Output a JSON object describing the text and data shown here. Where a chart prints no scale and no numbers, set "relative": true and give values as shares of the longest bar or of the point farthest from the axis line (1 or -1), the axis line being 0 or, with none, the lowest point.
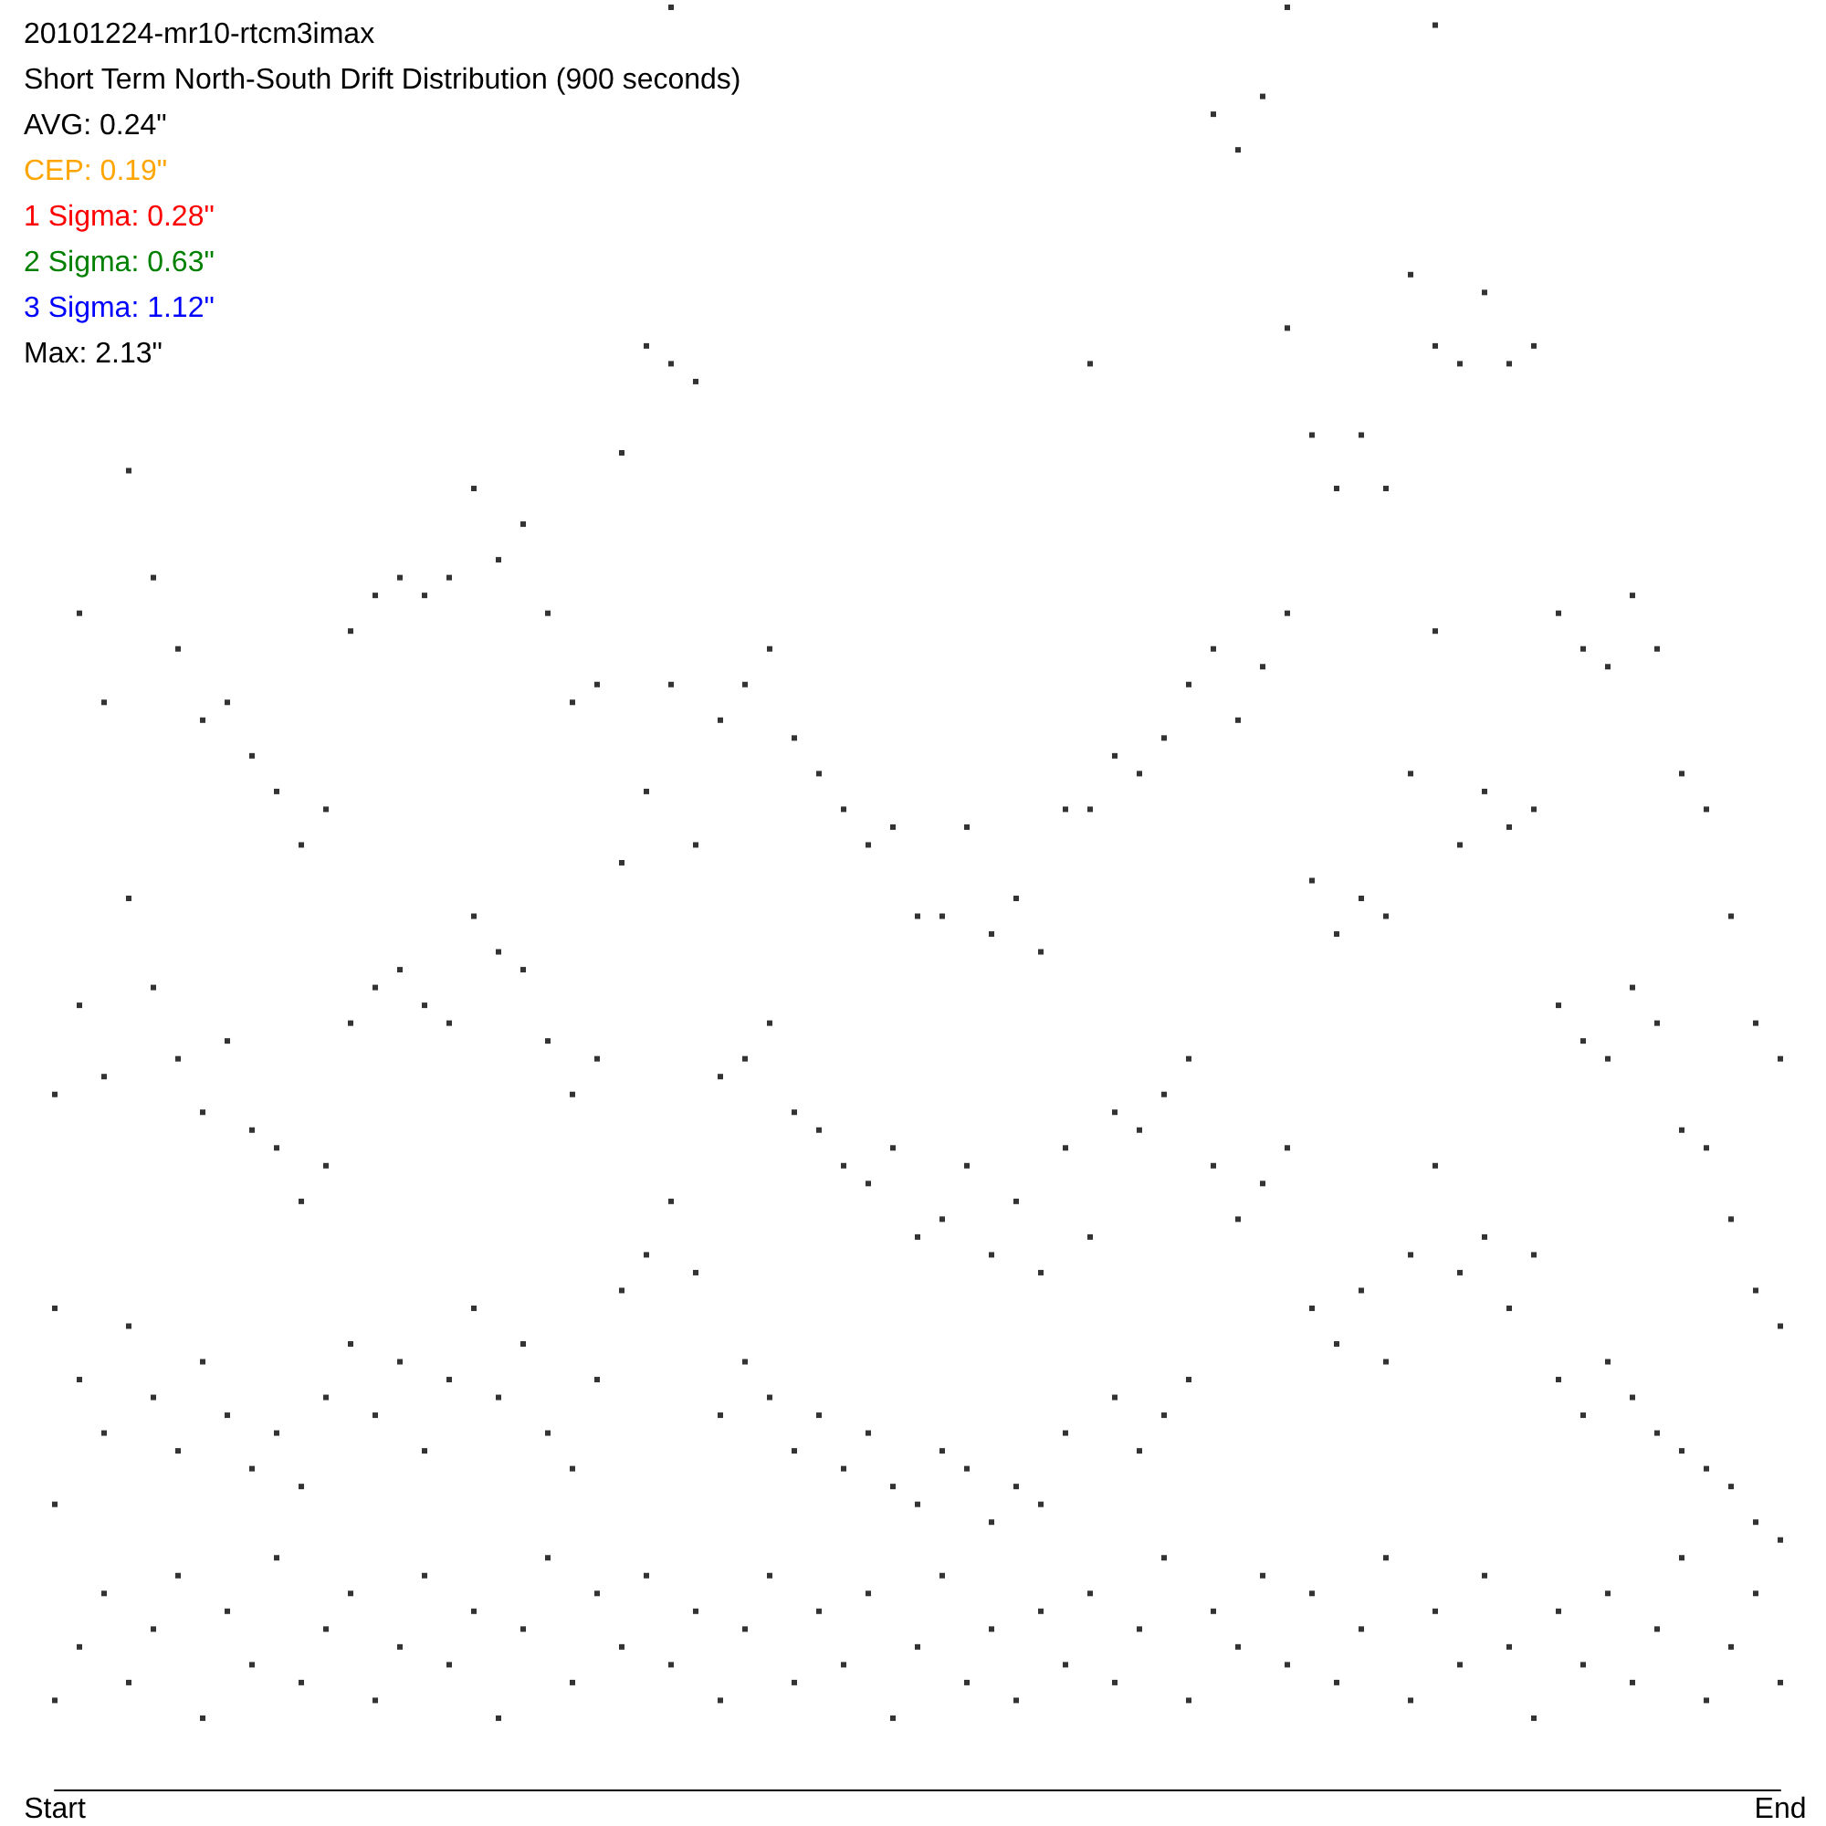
{
  "chart_data": {
    "type": "scatter",
    "title": "20101224-mr10-rtcm3imax",
    "subtitle": "Short Term North-South Drift Distribution (900 seconds)",
    "annotations": [
      "AVG: 0.24\"",
      "CEP: 0.19\"",
      "1 Sigma: 0.28\"",
      "2 Sigma: 0.63\"",
      "3 Sigma: 1.12\"",
      "Max: 2.13\""
    ],
    "relative": true,
    "marker": "square",
    "categories": [
      "Start",
      null,
      null,
      null,
      null,
      null,
      null,
      null,
      null,
      null,
      null,
      null,
      null,
      null,
      null,
      null,
      null,
      null,
      null,
      null,
      null,
      null,
      null,
      null,
      null,
      null,
      null,
      null,
      null,
      null,
      null,
      null,
      null,
      null,
      null,
      null,
      null,
      null,
      null,
      null,
      null,
      null,
      null,
      null,
      null,
      null,
      null,
      null,
      null,
      null,
      null,
      null,
      null,
      null,
      null,
      null,
      null,
      null,
      null,
      null,
      null,
      null,
      null,
      null,
      null,
      null,
      null,
      null,
      null,
      null,
      "End"
    ],
    "series": [
      {
        "color": "#000000",
        "values": [
          0.39,
          0.66,
          0.61,
          0.74,
          0.68,
          0.64,
          0.6,
          0.61,
          0.58,
          0.56,
          0.53,
          0.55,
          0.65,
          0.67,
          0.68,
          0.67,
          0.68,
          0.73,
          0.69,
          0.71,
          0.66,
          0.61,
          0.62,
          0.75,
          0.81,
          1,
          0.79,
          0.6,
          0.62,
          0.64,
          0.59,
          0.57,
          0.55,
          0.53,
          0.54,
          0.49,
          0.49,
          0.54,
          0.48,
          0.5,
          0.47,
          0.55,
          0.8,
          0.58,
          0.57,
          0.59,
          0.62,
          0.94,
          0.92,
          0.95,
          1,
          0.76,
          0.73,
          0.76,
          0.73,
          0.85,
          0.99,
          0.8,
          0.84,
          0.8,
          0.81,
          0.66,
          0.64,
          0.63,
          0.67,
          0.64,
          0.57,
          0.55,
          0.49,
          0.43,
          0.41
        ]
      },
      {
        "color": "#000000",
        "values": [
          0.27,
          0.44,
          0.4,
          0.5,
          0.45,
          0.41,
          0.38,
          0.42,
          0.37,
          0.36,
          0.33,
          0.35,
          0.43,
          0.45,
          0.46,
          0.44,
          0.43,
          0.49,
          0.47,
          0.46,
          0.42,
          0.39,
          0.41,
          0.52,
          0.56,
          0.62,
          0.53,
          0.4,
          0.41,
          0.43,
          0.38,
          0.37,
          0.35,
          0.34,
          0.36,
          0.31,
          0.32,
          0.35,
          0.3,
          0.33,
          0.29,
          0.36,
          0.55,
          0.38,
          0.37,
          0.39,
          0.41,
          0.64,
          0.6,
          0.63,
          0.66,
          0.51,
          0.48,
          0.5,
          0.49,
          0.57,
          0.65,
          0.53,
          0.56,
          0.54,
          0.55,
          0.44,
          0.42,
          0.41,
          0.45,
          0.43,
          0.37,
          0.36,
          0.32,
          0.28,
          0.26
        ]
      },
      {
        "color": "#000000",
        "values": [
          0.16,
          0.23,
          0.2,
          0.26,
          0.22,
          0.19,
          0.24,
          0.21,
          0.18,
          0.2,
          0.17,
          0.22,
          0.25,
          0.21,
          0.24,
          0.19,
          0.23,
          0.27,
          0.22,
          0.25,
          0.2,
          0.18,
          0.23,
          0.28,
          0.3,
          0.33,
          0.29,
          0.21,
          0.24,
          0.22,
          0.19,
          0.21,
          0.18,
          0.2,
          0.17,
          0.16,
          0.19,
          0.18,
          0.15,
          0.17,
          0.16,
          0.2,
          0.31,
          0.22,
          0.19,
          0.21,
          0.23,
          0.35,
          0.32,
          0.34,
          0.36,
          0.27,
          0.25,
          0.28,
          0.24,
          0.3,
          0.35,
          0.29,
          0.31,
          0.27,
          0.3,
          0.23,
          0.21,
          0.24,
          0.22,
          0.2,
          0.19,
          0.18,
          0.17,
          0.15,
          0.14
        ]
      },
      {
        "color": "#000000",
        "values": [
          0.05,
          0.08,
          0.11,
          0.06,
          0.09,
          0.12,
          0.04,
          0.1,
          0.07,
          0.13,
          0.06,
          0.09,
          0.11,
          0.05,
          0.08,
          0.12,
          0.07,
          0.1,
          0.04,
          0.09,
          0.13,
          0.06,
          0.11,
          0.08,
          0.12,
          0.07,
          0.1,
          0.05,
          0.09,
          0.12,
          0.06,
          0.1,
          0.07,
          0.11,
          0.04,
          0.08,
          0.12,
          0.06,
          0.09,
          0.05,
          0.1,
          0.07,
          0.11,
          0.06,
          0.09,
          0.13,
          0.05,
          0.1,
          0.08,
          0.12,
          0.07,
          0.11,
          0.06,
          0.09,
          0.13,
          0.05,
          0.1,
          0.07,
          0.12,
          0.08,
          0.04,
          0.1,
          0.07,
          0.11,
          0.06,
          0.09,
          0.13,
          0.05,
          0.08,
          0.11,
          0.06
        ]
      },
      {
        "color": "#000000",
        "values": [
          null,
          null,
          null,
          null,
          null,
          null,
          null,
          null,
          null,
          null,
          null,
          null,
          null,
          null,
          null,
          null,
          null,
          null,
          null,
          null,
          null,
          null,
          null,
          null,
          null,
          0.8,
          null,
          null,
          null,
          null,
          null,
          null,
          null,
          null,
          null,
          null,
          null,
          null,
          null,
          null,
          null,
          null,
          null,
          null,
          null,
          null,
          null,
          null,
          null,
          null,
          0.82,
          null,
          null,
          null,
          null,
          null,
          0.81,
          null,
          null,
          null,
          null,
          null,
          null,
          null,
          null,
          null,
          null,
          null,
          null,
          null,
          null
        ]
      }
    ]
  }
}
